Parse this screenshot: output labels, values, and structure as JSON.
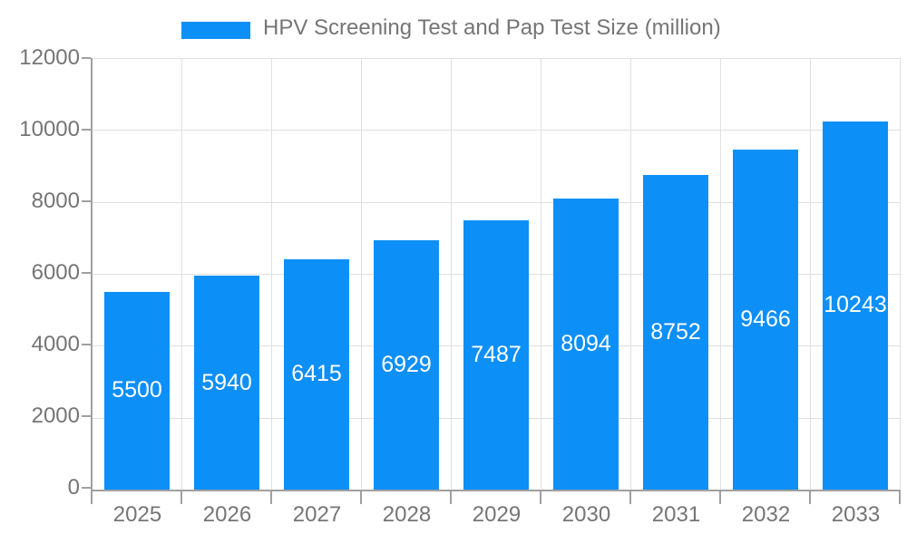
{
  "chart_data": {
    "type": "bar",
    "title": "",
    "legend": "HPV Screening Test and Pap Test Size (million)",
    "legend_position": "top",
    "categories": [
      "2025",
      "2026",
      "2027",
      "2028",
      "2029",
      "2030",
      "2031",
      "2032",
      "2033"
    ],
    "series": [
      {
        "name": "HPV Screening Test and Pap Test Size (million)",
        "values": [
          5500,
          5940,
          6415,
          6929,
          7487,
          8094,
          8752,
          9466,
          10243
        ]
      }
    ],
    "value_labels_visible": true,
    "value_label_position": "inside-center",
    "xlabel": "",
    "ylabel": "",
    "ylim": [
      0,
      12000
    ],
    "yticks": [
      0,
      2000,
      4000,
      6000,
      8000,
      10000,
      12000
    ],
    "grid": "both"
  },
  "colors": {
    "bar": "#0d8ff8",
    "bar_label": "#ffffff",
    "grid": "#e0e0e0",
    "axis": "#a0a0a0",
    "text": "#757575",
    "background": "#ffffff"
  }
}
